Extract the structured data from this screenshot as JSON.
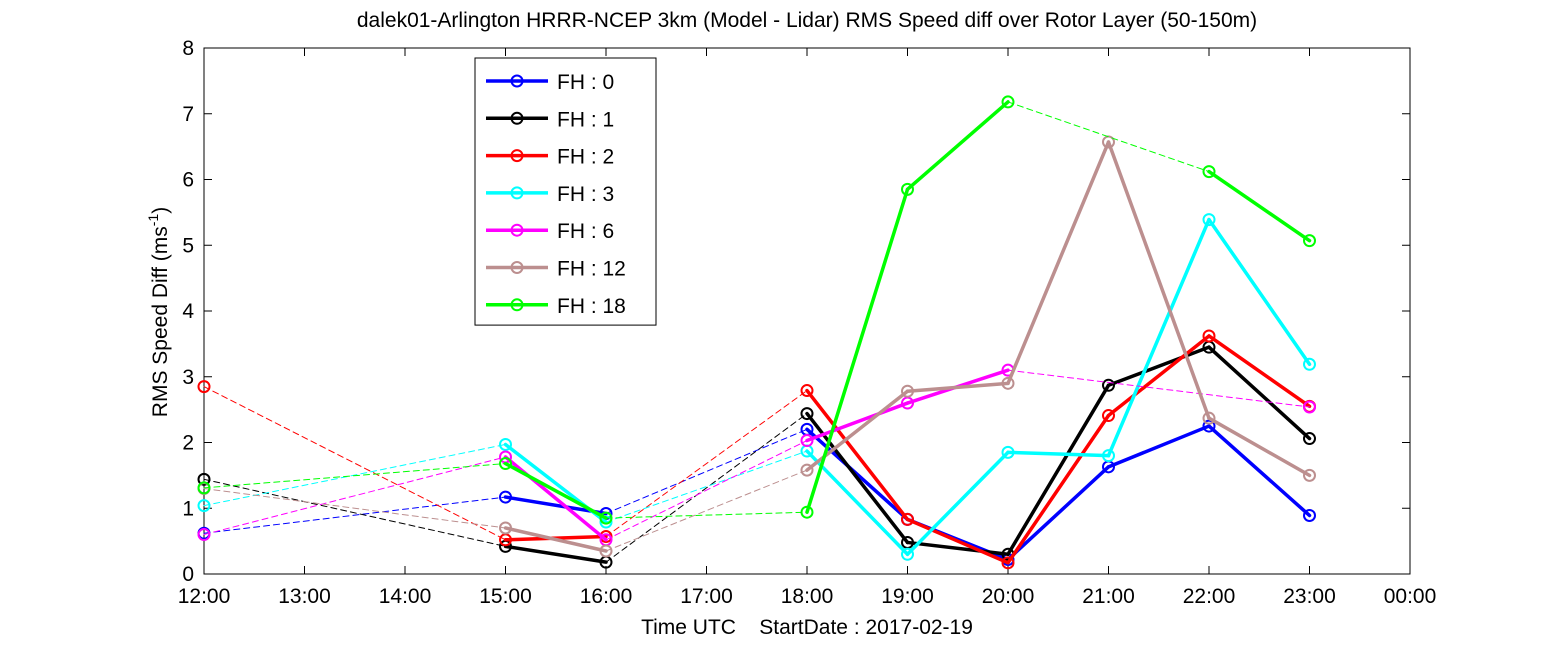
{
  "chart_data": {
    "type": "line",
    "title": "dalek01-Arlington HRRR-NCEP 3km (Model - Lidar) RMS Speed diff over Rotor Layer (50-150m)",
    "xlabel": "Time UTC    StartDate : 2017-02-19",
    "ylabel_main": "RMS Speed Diff (ms",
    "ylabel_sup": "-1",
    "ylabel_close": ")",
    "xlim": [
      12,
      24
    ],
    "ylim": [
      0,
      8
    ],
    "x_ticks": [
      12,
      13,
      14,
      15,
      16,
      17,
      18,
      19,
      20,
      21,
      22,
      23,
      24
    ],
    "x_tick_labels": [
      "12:00",
      "13:00",
      "14:00",
      "15:00",
      "16:00",
      "17:00",
      "18:00",
      "19:00",
      "20:00",
      "21:00",
      "22:00",
      "23:00",
      "00:00"
    ],
    "y_ticks": [
      0,
      1,
      2,
      3,
      4,
      5,
      6,
      7,
      8
    ],
    "y_tick_labels": [
      "0",
      "1",
      "2",
      "3",
      "4",
      "5",
      "6",
      "7",
      "8"
    ],
    "grid": false,
    "legend_position": "upper-left",
    "note_style": "solid segments join consecutive hours; dashed thin segments bridge gaps",
    "series": [
      {
        "name": "FH : 0",
        "color": "#0000ff",
        "x": [
          12,
          15,
          16,
          18,
          19,
          20,
          21,
          22,
          23
        ],
        "y": [
          0.62,
          1.17,
          0.92,
          2.2,
          0.83,
          0.22,
          1.63,
          2.25,
          0.89
        ]
      },
      {
        "name": "FH : 1",
        "color": "#000000",
        "x": [
          12,
          15,
          16,
          18,
          19,
          20,
          21,
          22,
          23
        ],
        "y": [
          1.44,
          0.42,
          0.18,
          2.44,
          0.48,
          0.3,
          2.87,
          3.45,
          2.06
        ]
      },
      {
        "name": "FH : 2",
        "color": "#ff0000",
        "x": [
          12,
          15,
          16,
          18,
          19,
          20,
          21,
          22,
          23
        ],
        "y": [
          2.85,
          0.52,
          0.57,
          2.79,
          0.83,
          0.17,
          2.41,
          3.62,
          2.55
        ]
      },
      {
        "name": "FH : 3",
        "color": "#00ffff",
        "x": [
          12,
          15,
          16,
          18,
          19,
          20,
          21,
          22,
          23
        ],
        "y": [
          1.04,
          1.97,
          0.79,
          1.87,
          0.3,
          1.85,
          1.8,
          5.39,
          3.19
        ]
      },
      {
        "name": "FH : 6",
        "color": "#ff00ff",
        "x": [
          12,
          15,
          16,
          18,
          19,
          20,
          23
        ],
        "y": [
          0.6,
          1.78,
          0.52,
          2.03,
          2.6,
          3.1,
          2.54
        ]
      },
      {
        "name": "FH : 12",
        "color": "#bc8f8f",
        "x": [
          12,
          15,
          16,
          18,
          19,
          20,
          21,
          22,
          23
        ],
        "y": [
          1.3,
          0.7,
          0.35,
          1.58,
          2.78,
          2.9,
          6.57,
          2.37,
          1.5
        ]
      },
      {
        "name": "FH : 18",
        "color": "#00ff00",
        "x": [
          12,
          15,
          16,
          18,
          19,
          20,
          22,
          23
        ],
        "y": [
          1.31,
          1.68,
          0.85,
          0.94,
          5.85,
          7.18,
          6.12,
          5.07
        ]
      }
    ]
  }
}
